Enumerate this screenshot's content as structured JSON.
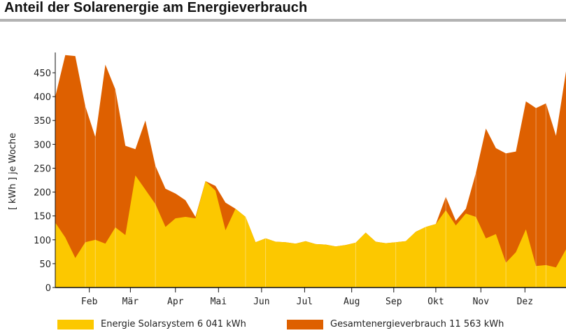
{
  "title": "Anteil der Solarenergie am Energieverbrauch",
  "chart_data": {
    "type": "area",
    "title": "Anteil der Solarenergie am Energieverbrauch",
    "ylabel": "[ kWh ]  je Woche",
    "xlabel": "",
    "ylim": [
      0,
      490
    ],
    "yticks": [
      0,
      50,
      100,
      150,
      200,
      250,
      300,
      350,
      400,
      450
    ],
    "x_unit": "week",
    "xlim": [
      1,
      52
    ],
    "month_ticks": [
      {
        "label": "Feb",
        "week": 4.4
      },
      {
        "label": "Mär",
        "week": 8.5
      },
      {
        "label": "Apr",
        "week": 13.0
      },
      {
        "label": "Mai",
        "week": 17.3
      },
      {
        "label": "Jun",
        "week": 21.6
      },
      {
        "label": "Jul",
        "week": 25.9
      },
      {
        "label": "Aug",
        "week": 30.6
      },
      {
        "label": "Sep",
        "week": 34.8
      },
      {
        "label": "Okt",
        "week": 39.0
      },
      {
        "label": "Nov",
        "week": 43.5
      },
      {
        "label": "Dez",
        "week": 47.9
      }
    ],
    "series": [
      {
        "name": "Gesamtenergieverbrauch",
        "total_label": "11 563  kWh",
        "color": "#de6000",
        "values": [
          400,
          487,
          485,
          380,
          315,
          467,
          415,
          297,
          290,
          350,
          255,
          207,
          197,
          183,
          148,
          223,
          213,
          178,
          165,
          148,
          95,
          103,
          96,
          95,
          92,
          97,
          91,
          90,
          86,
          89,
          94,
          115,
          96,
          93,
          95,
          97,
          117,
          127,
          133,
          190,
          140,
          165,
          240,
          333,
          292,
          281,
          285,
          390,
          376,
          386,
          318,
          453
        ]
      },
      {
        "name": "Energie  Solarsystem",
        "total_label": "6 041  kWh",
        "color": "#fcc800",
        "values": [
          136,
          105,
          62,
          95,
          100,
          92,
          126,
          110,
          235,
          205,
          175,
          127,
          145,
          148,
          145,
          223,
          203,
          120,
          165,
          148,
          95,
          103,
          96,
          95,
          92,
          97,
          91,
          90,
          86,
          89,
          94,
          115,
          96,
          93,
          95,
          97,
          117,
          127,
          133,
          162,
          130,
          155,
          148,
          103,
          112,
          52,
          74,
          122,
          45,
          47,
          42,
          80
        ]
      }
    ],
    "legend_position": "bottom"
  }
}
